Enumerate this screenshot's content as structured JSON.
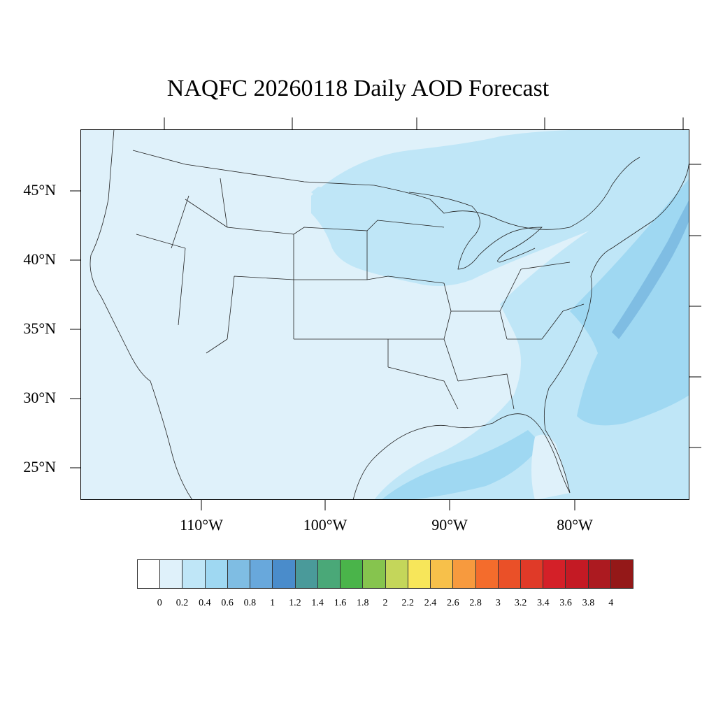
{
  "title": "NAQFC 20260118 Daily AOD Forecast",
  "lat_labels": [
    "45°N",
    "40°N",
    "35°N",
    "30°N",
    "25°N"
  ],
  "lon_labels": [
    "110°W",
    "100°W",
    "90°W",
    "80°W"
  ],
  "colorbar": {
    "colors": [
      "#ffffff",
      "#dff1fa",
      "#bfe6f7",
      "#9fd8f2",
      "#7fbde3",
      "#68a8dc",
      "#4a8ccb",
      "#4a9a9a",
      "#4aa878",
      "#4ab44a",
      "#86c44e",
      "#c4d65a",
      "#f7e65a",
      "#f7c04a",
      "#f79a3e",
      "#f46c2c",
      "#ea5028",
      "#e03a28",
      "#d42028",
      "#c41a24",
      "#ac1a20",
      "#941818"
    ],
    "labels": [
      "0",
      "0.2",
      "0.4",
      "0.6",
      "0.8",
      "1",
      "1.2",
      "1.4",
      "1.6",
      "1.8",
      "2",
      "2.2",
      "2.4",
      "2.6",
      "2.8",
      "3",
      "3.2",
      "3.4",
      "3.6",
      "3.8",
      "4"
    ]
  },
  "map": {
    "background_color": "#dff1fa",
    "medium_color": "#bfe6f7",
    "high_color": "#9fd8f2",
    "peak_color": "#7fbde3",
    "outline_color": "#222222"
  }
}
